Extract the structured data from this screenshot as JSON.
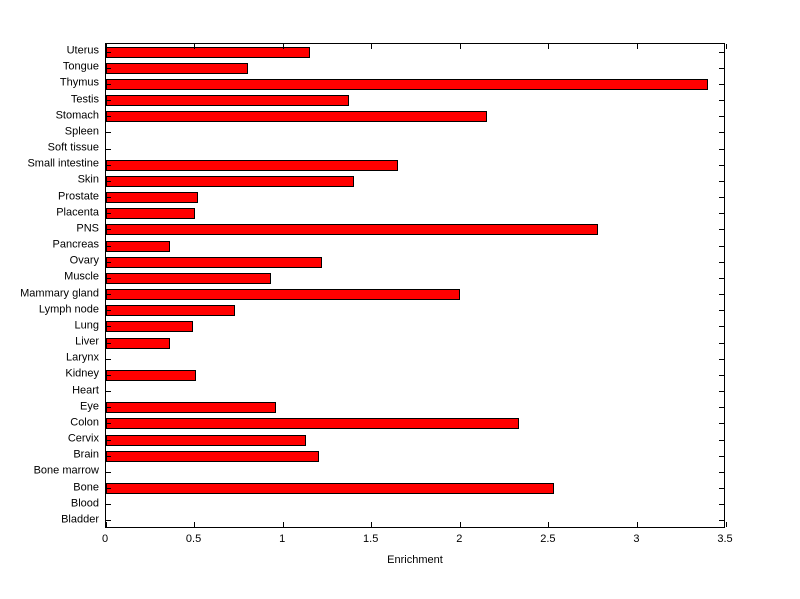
{
  "chart_data": {
    "type": "bar",
    "orientation": "horizontal",
    "title": "",
    "xlabel": "Enrichment",
    "ylabel": "",
    "xlim": [
      0,
      3.5
    ],
    "xticks": [
      0,
      0.5,
      1,
      1.5,
      2,
      2.5,
      3,
      3.5
    ],
    "xtick_labels": [
      "0",
      "0.5",
      "1",
      "1.5",
      "2",
      "2.5",
      "3",
      "3.5"
    ],
    "grid": false,
    "legend": false,
    "bar_color": "#FF0000",
    "bar_edge_color": "#000000",
    "categories": [
      "Uterus",
      "Tongue",
      "Thymus",
      "Testis",
      "Stomach",
      "Spleen",
      "Soft tissue",
      "Small intestine",
      "Skin",
      "Prostate",
      "Placenta",
      "PNS",
      "Pancreas",
      "Ovary",
      "Muscle",
      "Mammary gland",
      "Lymph node",
      "Lung",
      "Liver",
      "Larynx",
      "Kidney",
      "Heart",
      "Eye",
      "Colon",
      "Cervix",
      "Brain",
      "Bone marrow",
      "Bone",
      "Blood",
      "Bladder"
    ],
    "values": [
      1.15,
      0.8,
      3.4,
      1.37,
      2.15,
      0,
      0,
      1.65,
      1.4,
      0.52,
      0.5,
      2.78,
      0.36,
      1.22,
      0.93,
      2.0,
      0.73,
      0.49,
      0.36,
      0,
      0.51,
      0,
      0.96,
      2.33,
      1.13,
      1.2,
      0,
      2.53,
      0,
      0
    ]
  }
}
